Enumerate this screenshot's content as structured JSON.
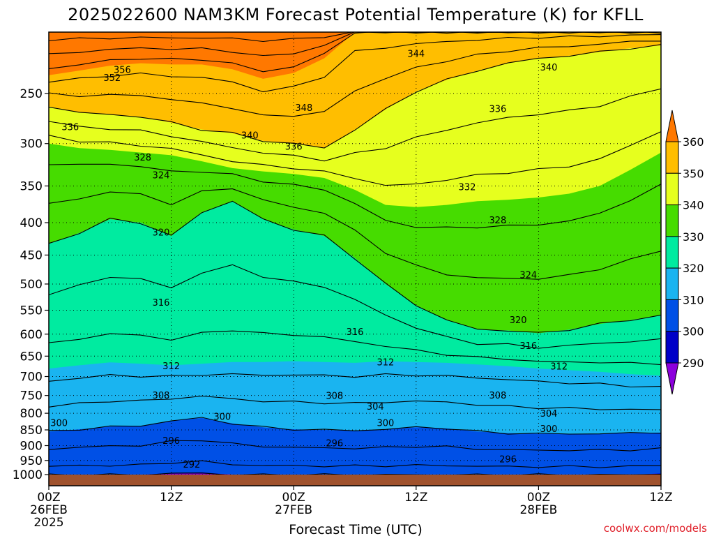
{
  "chart_data": {
    "type": "heatmap",
    "title": "2025022600 NAM3KM Forecast Potential Temperature (K) for KFLL",
    "xlabel": "Forecast Time (UTC)",
    "ylabel": "",
    "credit": "coolwx.com/models",
    "x_ticks": [
      {
        "hour": 0,
        "labels": [
          "00Z",
          "26FEB",
          "2025"
        ]
      },
      {
        "hour": 12,
        "labels": [
          "12Z"
        ]
      },
      {
        "hour": 24,
        "labels": [
          "00Z",
          "27FEB"
        ]
      },
      {
        "hour": 36,
        "labels": [
          "12Z"
        ]
      },
      {
        "hour": 48,
        "labels": [
          "00Z",
          "28FEB"
        ]
      },
      {
        "hour": 60,
        "labels": [
          "12Z"
        ]
      }
    ],
    "xlim": [
      0,
      60
    ],
    "y_ticks": [
      250,
      300,
      350,
      400,
      450,
      500,
      550,
      600,
      650,
      700,
      750,
      800,
      850,
      900,
      950,
      1000
    ],
    "ylim": [
      200,
      1000
    ],
    "y_scale": "log",
    "y_inverted": true,
    "grid": true,
    "ground_level": 1000,
    "colorbar": {
      "levels": [
        290,
        300,
        310,
        320,
        330,
        340,
        350,
        360
      ],
      "colors": [
        "#0000c8",
        "#0050e6",
        "#1ab4f0",
        "#00eba0",
        "#46dc00",
        "#e6ff1e",
        "#ffbe00"
      ],
      "below_color": "#8c00dc",
      "above_color": "#ff7800",
      "labels": [
        "360",
        "350",
        "340",
        "330",
        "320",
        "310",
        "300",
        "290"
      ]
    },
    "contour_interval": 4,
    "contour_labels": [
      {
        "value": "356",
        "hour": 7.2,
        "p": 229
      },
      {
        "value": "352",
        "hour": 6.2,
        "p": 236
      },
      {
        "value": "344",
        "hour": 36.0,
        "p": 216
      },
      {
        "value": "340",
        "hour": 49.0,
        "p": 227
      },
      {
        "value": "348",
        "hour": 25.0,
        "p": 263
      },
      {
        "value": "336",
        "hour": 2.1,
        "p": 282
      },
      {
        "value": "340",
        "hour": 19.7,
        "p": 291
      },
      {
        "value": "336",
        "hour": 24.0,
        "p": 303
      },
      {
        "value": "336",
        "hour": 44.0,
        "p": 264
      },
      {
        "value": "328",
        "hour": 9.2,
        "p": 315
      },
      {
        "value": "324",
        "hour": 11.0,
        "p": 336
      },
      {
        "value": "332",
        "hour": 41.0,
        "p": 351
      },
      {
        "value": "320",
        "hour": 11.0,
        "p": 414
      },
      {
        "value": "328",
        "hour": 44.0,
        "p": 396
      },
      {
        "value": "324",
        "hour": 47.0,
        "p": 483
      },
      {
        "value": "316",
        "hour": 11.0,
        "p": 534
      },
      {
        "value": "320",
        "hour": 46.0,
        "p": 569
      },
      {
        "value": "316",
        "hour": 30.0,
        "p": 594
      },
      {
        "value": "316",
        "hour": 47.0,
        "p": 625
      },
      {
        "value": "312",
        "hour": 12.0,
        "p": 673
      },
      {
        "value": "312",
        "hour": 33.0,
        "p": 664
      },
      {
        "value": "312",
        "hour": 50.0,
        "p": 674
      },
      {
        "value": "308",
        "hour": 11.0,
        "p": 749
      },
      {
        "value": "308",
        "hour": 28.0,
        "p": 750
      },
      {
        "value": "308",
        "hour": 44.0,
        "p": 749
      },
      {
        "value": "304",
        "hour": 32.0,
        "p": 780
      },
      {
        "value": "304",
        "hour": 49.0,
        "p": 800
      },
      {
        "value": "300",
        "hour": 17.0,
        "p": 809
      },
      {
        "value": "300",
        "hour": 33.0,
        "p": 828
      },
      {
        "value": "300",
        "hour": 1.0,
        "p": 828
      },
      {
        "value": "300",
        "hour": 49.0,
        "p": 846
      },
      {
        "value": "296",
        "hour": 12.0,
        "p": 883
      },
      {
        "value": "296",
        "hour": 28.0,
        "p": 891
      },
      {
        "value": "296",
        "hour": 45.0,
        "p": 945
      },
      {
        "value": "292",
        "hour": 14.0,
        "p": 963
      }
    ],
    "band_boundaries": {
      "note_units": "pressure hPa at hours 0,3,...,60",
      "hours": [
        0,
        3,
        6,
        9,
        12,
        15,
        18,
        21,
        24,
        27,
        30,
        33,
        36,
        39,
        42,
        45,
        48,
        51,
        54,
        57,
        60
      ],
      "t350": [
        234,
        230,
        226,
        224,
        225,
        225,
        229,
        237,
        232,
        220,
        200,
        200,
        200,
        200,
        200,
        200,
        200,
        200,
        200,
        200,
        200
      ],
      "t340": [
        262,
        268,
        270,
        272,
        278,
        285,
        289,
        297,
        300,
        305,
        285,
        265,
        248,
        238,
        230,
        224,
        220,
        218,
        215,
        212,
        210
      ],
      "t330": [
        300,
        305,
        307,
        310,
        313,
        320,
        328,
        332,
        335,
        340,
        355,
        375,
        378,
        375,
        370,
        368,
        365,
        360,
        350,
        330,
        310
      ],
      "t320": [
        432,
        415,
        395,
        400,
        420,
        385,
        370,
        395,
        410,
        420,
        455,
        500,
        540,
        570,
        590,
        592,
        598,
        590,
        578,
        570,
        560
      ],
      "t310": [
        680,
        672,
        665,
        668,
        672,
        668,
        664,
        664,
        662,
        664,
        666,
        662,
        664,
        666,
        670,
        674,
        680,
        684,
        688,
        694,
        698
      ],
      "t300": [
        855,
        848,
        840,
        838,
        822,
        814,
        830,
        842,
        848,
        850,
        852,
        848,
        842,
        845,
        855,
        860,
        862,
        862,
        862,
        860,
        858
      ],
      "t290": [
        1001,
        1001,
        1001,
        1001,
        994,
        992,
        1001,
        1001,
        1001,
        1001,
        1001,
        1001,
        1001,
        1001,
        1001,
        1001,
        1001,
        1001,
        1001,
        1001,
        996
      ]
    }
  }
}
